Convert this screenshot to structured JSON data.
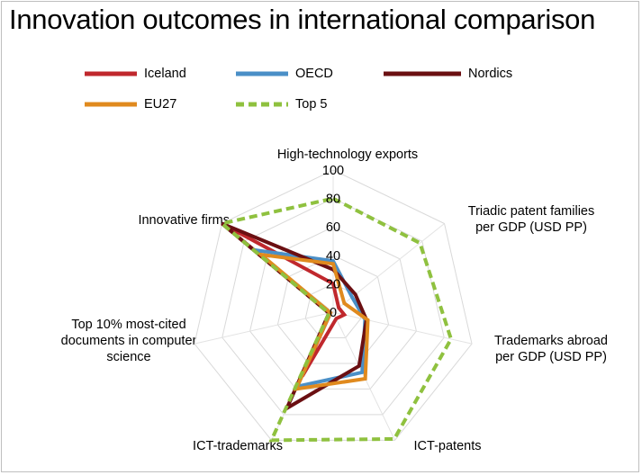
{
  "chart_data": {
    "type": "radar",
    "title": "Innovation outcomes in international comparison",
    "axes": [
      "High-technology exports",
      "Triadic patent families per GDP (USD PP)",
      "Trademarks abroad per GDP (USD PP)",
      "ICT-patents",
      "ICT-trademarks",
      "Top 10% most-cited documents in computer science",
      "Innovative firms"
    ],
    "axis_label_lines": [
      [
        "High-technology exports"
      ],
      [
        "Triadic patent families",
        "per GDP (USD PP)"
      ],
      [
        "Trademarks abroad",
        "per GDP (USD PP)"
      ],
      [
        "ICT-patents"
      ],
      [
        "ICT-trademarks"
      ],
      [
        "Top 10% most-cited",
        "documents in computer",
        "science"
      ],
      [
        "Innovative firms"
      ]
    ],
    "rlim": [
      0,
      100
    ],
    "ticks": [
      "0",
      "20",
      "40",
      "60",
      "80",
      "100"
    ],
    "tick_values": [
      0,
      20,
      40,
      60,
      80,
      100
    ],
    "legend_position": "top",
    "series": [
      {
        "name": "Iceland",
        "color": "#c0282d",
        "dash": false,
        "values": [
          20,
          5,
          8,
          5,
          50,
          2,
          100
        ]
      },
      {
        "name": "OECD",
        "color": "#4a8fc7",
        "dash": false,
        "values": [
          36,
          17,
          23,
          47,
          58,
          3,
          70
        ]
      },
      {
        "name": "Nordics",
        "color": "#6b0f12",
        "dash": false,
        "values": [
          30,
          20,
          24,
          42,
          75,
          3,
          100
        ]
      },
      {
        "name": "EU27",
        "color": "#e08a1e",
        "dash": false,
        "values": [
          34,
          10,
          25,
          52,
          60,
          2,
          65
        ]
      },
      {
        "name": "Top 5",
        "color": "#8fc13f",
        "dash": true,
        "values": [
          80,
          78,
          85,
          99,
          100,
          3,
          100
        ]
      }
    ]
  }
}
